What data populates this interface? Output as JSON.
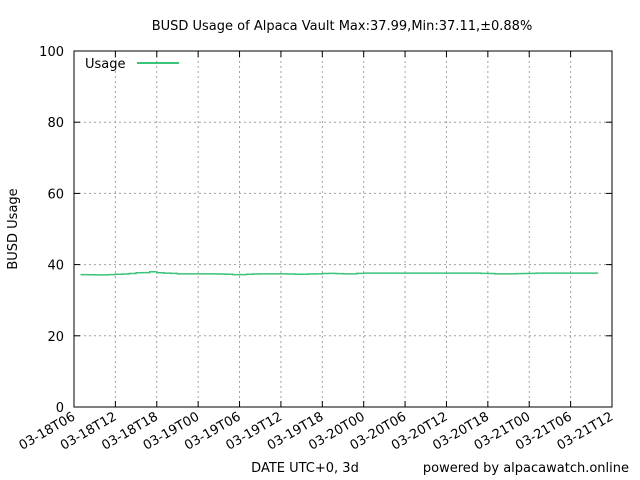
{
  "chart_data": {
    "type": "line",
    "title": "BUSD Usage of Alpaca Vault Max:37.99,Min:37.11,±0.88%",
    "xlabel": "DATE UTC+0, 3d",
    "ylabel": "BUSD Usage",
    "footer": "powered by alpacawatch.online",
    "ylim": [
      0,
      100
    ],
    "yticks": [
      0,
      20,
      40,
      60,
      80,
      100
    ],
    "xlim": [
      "03-18T06",
      "03-21T12"
    ],
    "xtick_labels": [
      "03-18T06",
      "03-18T12",
      "03-18T18",
      "03-19T00",
      "03-19T06",
      "03-19T12",
      "03-19T18",
      "03-20T00",
      "03-20T06",
      "03-20T12",
      "03-20T18",
      "03-21T00",
      "03-21T06",
      "03-21T12"
    ],
    "grid": true,
    "legend_position": "top-left",
    "series": [
      {
        "name": "Usage",
        "color": "#3cc37a",
        "x": [
          "03-18T07",
          "03-18T08",
          "03-18T09",
          "03-18T10",
          "03-18T11",
          "03-18T12",
          "03-18T13",
          "03-18T14",
          "03-18T15",
          "03-18T16",
          "03-18T17",
          "03-18T18",
          "03-18T19",
          "03-18T20",
          "03-18T21",
          "03-18T22",
          "03-18T23",
          "03-19T00",
          "03-19T01",
          "03-19T02",
          "03-19T03",
          "03-19T04",
          "03-19T05",
          "03-19T06",
          "03-19T07",
          "03-19T08",
          "03-19T09",
          "03-19T10",
          "03-19T11",
          "03-19T12",
          "03-19T13",
          "03-19T14",
          "03-19T15",
          "03-19T16",
          "03-19T17",
          "03-19T18",
          "03-19T19",
          "03-19T20",
          "03-19T21",
          "03-19T22",
          "03-19T23",
          "03-20T00",
          "03-20T01",
          "03-20T02",
          "03-20T03",
          "03-20T04",
          "03-20T05",
          "03-20T06",
          "03-20T07",
          "03-20T08",
          "03-20T09",
          "03-20T10",
          "03-20T11",
          "03-20T12",
          "03-20T13",
          "03-20T14",
          "03-20T15",
          "03-20T16",
          "03-20T17",
          "03-20T18",
          "03-20T19",
          "03-20T20",
          "03-20T21",
          "03-20T22",
          "03-20T23",
          "03-21T00",
          "03-21T01",
          "03-21T02",
          "03-21T03",
          "03-21T04",
          "03-21T05",
          "03-21T06",
          "03-21T07",
          "03-21T08",
          "03-21T09"
        ],
        "values": [
          37.2,
          37.15,
          37.11,
          37.11,
          37.2,
          37.3,
          37.35,
          37.5,
          37.7,
          37.75,
          37.99,
          37.7,
          37.6,
          37.55,
          37.4,
          37.4,
          37.4,
          37.4,
          37.4,
          37.4,
          37.35,
          37.3,
          37.2,
          37.2,
          37.3,
          37.35,
          37.4,
          37.4,
          37.4,
          37.4,
          37.35,
          37.3,
          37.3,
          37.35,
          37.4,
          37.5,
          37.55,
          37.45,
          37.4,
          37.4,
          37.55,
          37.6,
          37.6,
          37.6,
          37.6,
          37.6,
          37.6,
          37.6,
          37.6,
          37.6,
          37.6,
          37.6,
          37.6,
          37.6,
          37.6,
          37.6,
          37.6,
          37.6,
          37.55,
          37.5,
          37.4,
          37.4,
          37.4,
          37.45,
          37.5,
          37.55,
          37.6,
          37.6,
          37.6,
          37.6,
          37.6,
          37.6,
          37.6,
          37.6,
          37.6
        ]
      }
    ]
  }
}
